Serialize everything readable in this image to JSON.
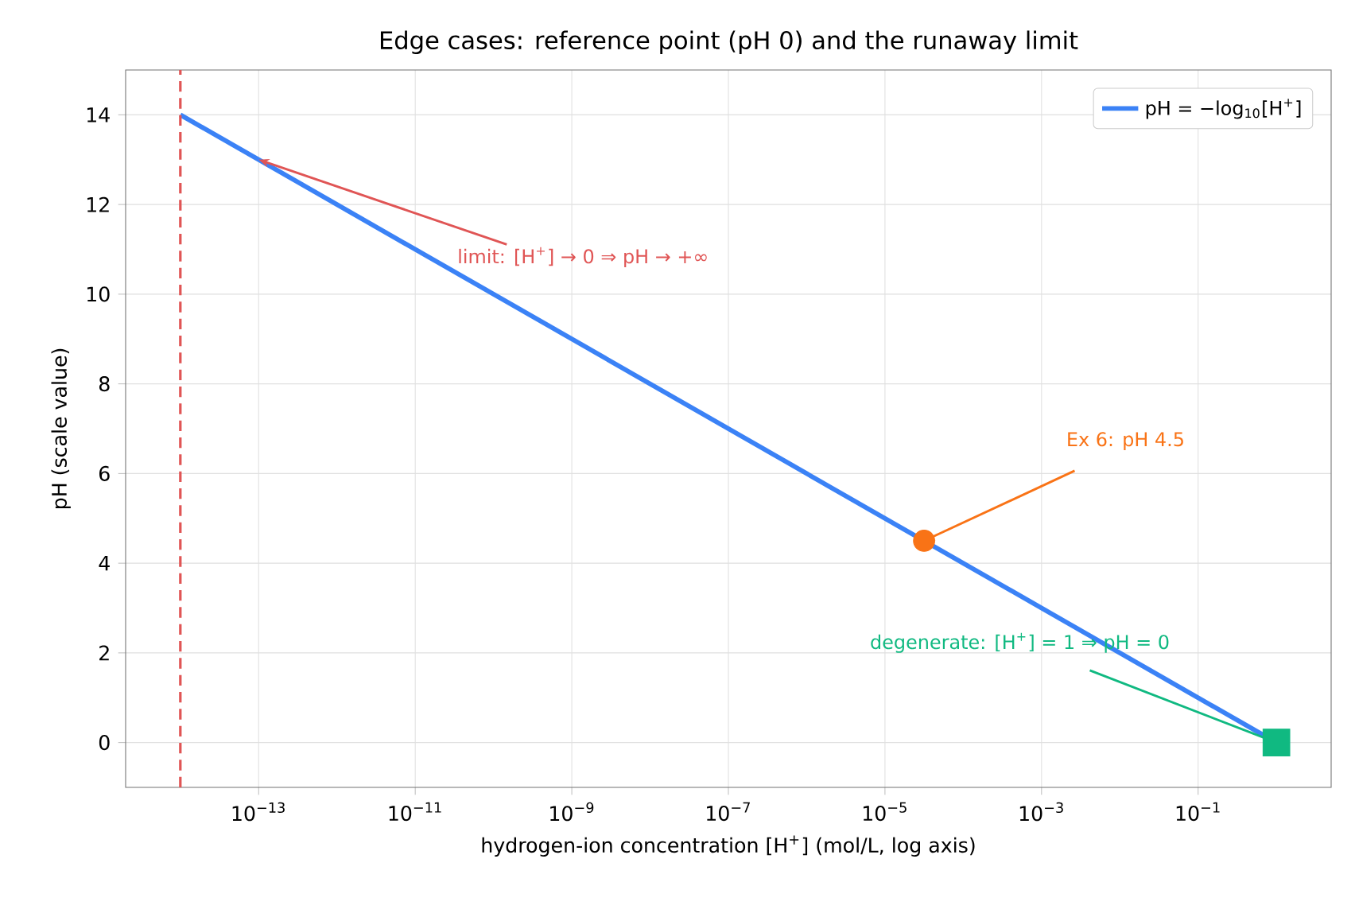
{
  "chart_data": {
    "type": "line",
    "title": "Edge cases: reference point (pH 0) and the runaway limit",
    "xlabel": "hydrogen-ion concentration  [H$^{+}$]  (mol/L, log axis)",
    "ylabel": "pH  (scale value)",
    "log": "x",
    "grid": true,
    "legend": "top right",
    "xlim": [
      2e-15,
      5
    ],
    "ylim": [
      -1,
      15
    ],
    "xticks": [
      {
        "value": 1e-13,
        "label": "10$^{−13}$"
      },
      {
        "value": 1e-11,
        "label": "10$^{−11}$"
      },
      {
        "value": 1e-09,
        "label": "10$^{−9}$"
      },
      {
        "value": 1e-07,
        "label": "10$^{−7}$"
      },
      {
        "value": 1e-05,
        "label": "10$^{−5}$"
      },
      {
        "value": 0.001,
        "label": "10$^{−3}$"
      },
      {
        "value": 0.1,
        "label": "10$^{−1}$"
      }
    ],
    "yticks": [
      0,
      2,
      4,
      6,
      8,
      10,
      12,
      14
    ],
    "series": [
      {
        "name": "pH = −log$_{10}$[H$^{+}$]",
        "color": "#3b82f6",
        "x": [
          1e-14,
          1
        ],
        "values": [
          14,
          0
        ]
      },
      {
        "type": "scatter",
        "marker": "circle",
        "color": "#f97316",
        "x": [
          3.16e-05
        ],
        "values": [
          4.5
        ]
      },
      {
        "type": "scatter",
        "marker": "square",
        "color": "#10b981",
        "x": [
          1
        ],
        "values": [
          0
        ]
      }
    ],
    "ref_lines": [
      {
        "axis": "x",
        "value": 1e-14,
        "color": "#e05555",
        "line_style": "dashed"
      }
    ],
    "annotations": [
      {
        "text": "limit: [H$^{+}$] → 0 ⇒ pH → +∞",
        "x": 1e-13,
        "y": 13
      },
      {
        "text": "Ex 6: pH 4.5",
        "x": 3.16e-05,
        "y": 4.5
      },
      {
        "text": "degenerate: [H$^{+}$] = 1 ⇒ pH = 0",
        "x": 1,
        "y": 0
      }
    ]
  }
}
